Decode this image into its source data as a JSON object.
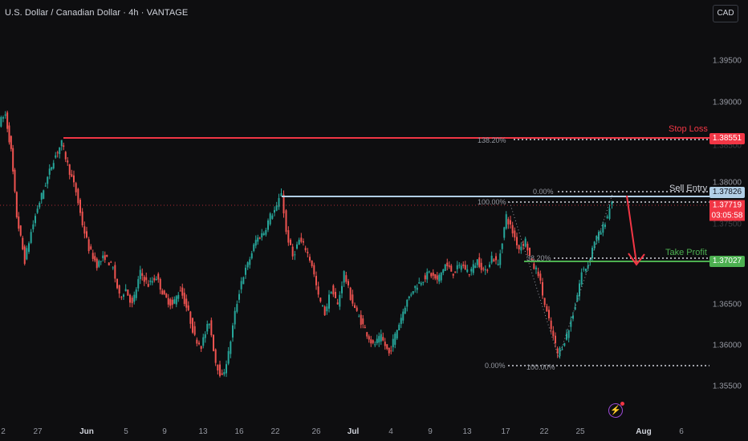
{
  "header": {
    "title": "U.S. Dollar / Canadian Dollar · 4h · VANTAGE",
    "currency_button": "CAD"
  },
  "y_axis": {
    "ticks": [
      "1.39500",
      "1.39000",
      "1.38500",
      "1.38000",
      "1.37500",
      "1.36500",
      "1.36000",
      "1.35500"
    ]
  },
  "x_axis": {
    "labels": [
      "2",
      "27",
      "Jun",
      "5",
      "9",
      "13",
      "16",
      "22",
      "26",
      "Jul",
      "4",
      "9",
      "13",
      "17",
      "22",
      "25",
      "Aug",
      "6"
    ]
  },
  "levels": {
    "stop_loss": {
      "label": "Stop Loss",
      "price": "1.38551",
      "value": 1.38551,
      "color": "#f23645"
    },
    "sell_entry": {
      "label": "Sell Entry",
      "price": "1.37826",
      "value": 1.37826,
      "color": "#b2cfe6"
    },
    "take_profit": {
      "label": "Take Profit",
      "price": "1.37027",
      "value": 1.37027,
      "color": "#4caf50"
    },
    "current": {
      "price": "1.37719",
      "countdown": "03:05:58",
      "value": 1.37719
    }
  },
  "fib": {
    "left_set": [
      "138.20%",
      "100.00%",
      "0.00%"
    ],
    "right_set": [
      "0.00%",
      "38.20%",
      "100.00%"
    ]
  },
  "colors": {
    "background": "#0e0e10",
    "up": "#26a69a",
    "down": "#ef5350",
    "stop": "#f23645",
    "entry": "#b2cfe6",
    "profit": "#4caf50"
  },
  "icons": {
    "alert": "lightning-icon"
  }
}
